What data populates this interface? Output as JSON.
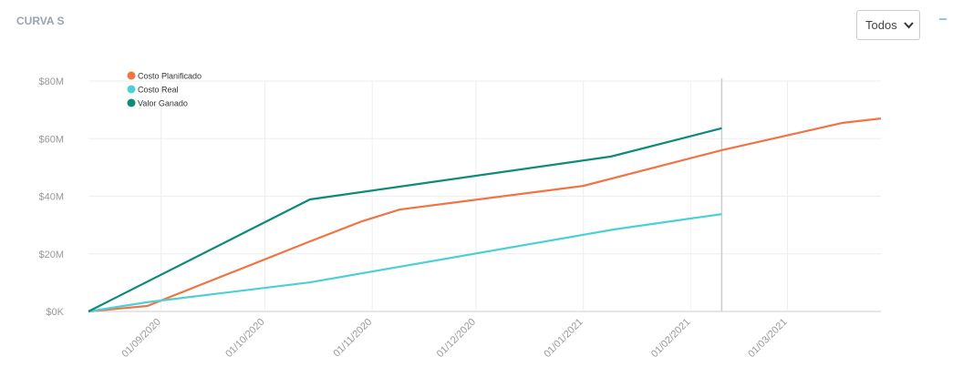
{
  "header": {
    "title": "CURVA S",
    "filter": "Todos"
  },
  "chart_data": {
    "type": "line",
    "xlim": [
      "2020-08-11",
      "2021-03-28"
    ],
    "xticks": [
      {
        "value": "2020-09-01",
        "label": "01/09/2020"
      },
      {
        "value": "2020-10-01",
        "label": "01/10/2020"
      },
      {
        "value": "2020-11-01",
        "label": "01/11/2020"
      },
      {
        "value": "2020-12-01",
        "label": "01/12/2020"
      },
      {
        "value": "2021-01-01",
        "label": "01/01/2021"
      },
      {
        "value": "2021-02-01",
        "label": "01/02/2021"
      },
      {
        "value": "2021-03-01",
        "label": "01/03/2021"
      }
    ],
    "ylim": [
      0,
      80000000
    ],
    "yticks": [
      {
        "value": 0,
        "label": "$0K"
      },
      {
        "value": 20000000,
        "label": "$20M"
      },
      {
        "value": 40000000,
        "label": "$40M"
      },
      {
        "value": 60000000,
        "label": "$60M"
      },
      {
        "value": 80000000,
        "label": "$80M"
      }
    ],
    "grid": true,
    "legend": "top-left",
    "vline": "2021-02-10",
    "series": [
      {
        "name": "Costo Planificado",
        "color": "#f07444",
        "x": [
          "2020-08-11",
          "2020-08-28",
          "2020-10-14",
          "2020-10-29",
          "2020-11-09",
          "2021-01-01",
          "2021-02-10",
          "2021-03-17",
          "2021-03-28"
        ],
        "values": [
          0,
          1900000,
          24300000,
          31300000,
          35400000,
          43600000,
          56000000,
          65500000,
          67000000
        ]
      },
      {
        "name": "Costo Real",
        "color": "#4dcfd8",
        "x": [
          "2020-08-11",
          "2020-08-28",
          "2020-10-14",
          "2021-01-10",
          "2021-02-10"
        ],
        "values": [
          0,
          3200000,
          10100000,
          28500000,
          33800000
        ]
      },
      {
        "name": "Valor Ganado",
        "color": "#0e8a78",
        "x": [
          "2020-08-11",
          "2020-10-14",
          "2021-01-09",
          "2021-02-10"
        ],
        "values": [
          0,
          38900000,
          53800000,
          63600000
        ]
      }
    ]
  }
}
